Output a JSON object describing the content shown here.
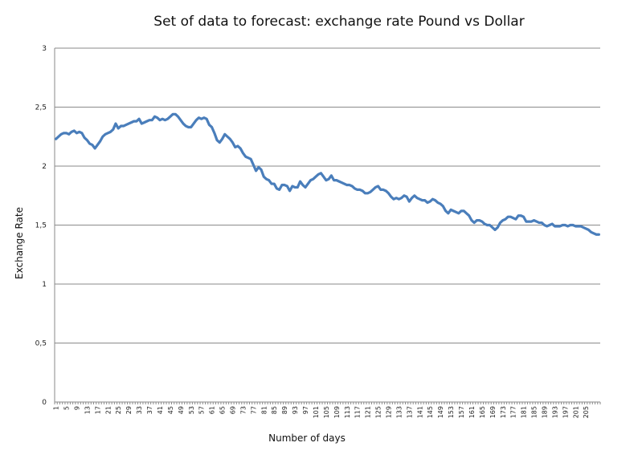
{
  "chart_data": {
    "type": "line",
    "title": "Set of data to forecast: exchange rate Pound vs Dollar",
    "xlabel": "Number of days",
    "ylabel": "Exchange Rate",
    "ylim": [
      0,
      3
    ],
    "y_ticks": [
      "0",
      "0,5",
      "1",
      "1,5",
      "2",
      "2,5",
      "3"
    ],
    "x_tick_labels": [
      "1",
      "5",
      "9",
      "13",
      "17",
      "21",
      "25",
      "29",
      "33",
      "37",
      "41",
      "45",
      "49",
      "53",
      "57",
      "61",
      "65",
      "69",
      "73",
      "77",
      "81",
      "85",
      "89",
      "93",
      "97",
      "101",
      "105",
      "109",
      "113",
      "117",
      "121",
      "125",
      "129",
      "133",
      "137",
      "141",
      "145",
      "149",
      "153",
      "157",
      "161",
      "165",
      "169",
      "173",
      "177",
      "181",
      "185",
      "189",
      "193",
      "197",
      "201",
      "205"
    ],
    "grid": true,
    "legend": "none",
    "line_color": "#4a7ebb",
    "series": [
      {
        "values": [
          2.23,
          2.25,
          2.27,
          2.28,
          2.28,
          2.27,
          2.29,
          2.3,
          2.28,
          2.29,
          2.28,
          2.24,
          2.22,
          2.19,
          2.18,
          2.15,
          2.18,
          2.21,
          2.25,
          2.27,
          2.28,
          2.29,
          2.31,
          2.36,
          2.32,
          2.34,
          2.34,
          2.35,
          2.36,
          2.37,
          2.38,
          2.38,
          2.4,
          2.36,
          2.37,
          2.38,
          2.39,
          2.39,
          2.42,
          2.41,
          2.39,
          2.4,
          2.39,
          2.4,
          2.42,
          2.44,
          2.44,
          2.42,
          2.39,
          2.36,
          2.34,
          2.33,
          2.33,
          2.36,
          2.39,
          2.41,
          2.4,
          2.41,
          2.4,
          2.35,
          2.33,
          2.28,
          2.22,
          2.2,
          2.23,
          2.27,
          2.25,
          2.23,
          2.2,
          2.16,
          2.17,
          2.15,
          2.11,
          2.08,
          2.07,
          2.06,
          2.01,
          1.96,
          1.99,
          1.97,
          1.91,
          1.89,
          1.88,
          1.85,
          1.85,
          1.81,
          1.8,
          1.84,
          1.84,
          1.83,
          1.79,
          1.83,
          1.82,
          1.82,
          1.87,
          1.84,
          1.82,
          1.85,
          1.88,
          1.89,
          1.91,
          1.93,
          1.94,
          1.91,
          1.88,
          1.89,
          1.92,
          1.88,
          1.88,
          1.87,
          1.86,
          1.85,
          1.84,
          1.84,
          1.83,
          1.81,
          1.8,
          1.8,
          1.79,
          1.77,
          1.77,
          1.78,
          1.8,
          1.82,
          1.83,
          1.8,
          1.8,
          1.79,
          1.77,
          1.74,
          1.72,
          1.73,
          1.72,
          1.73,
          1.75,
          1.74,
          1.7,
          1.73,
          1.75,
          1.73,
          1.72,
          1.71,
          1.71,
          1.69,
          1.7,
          1.72,
          1.71,
          1.69,
          1.68,
          1.66,
          1.62,
          1.6,
          1.63,
          1.62,
          1.61,
          1.6,
          1.62,
          1.62,
          1.6,
          1.58,
          1.54,
          1.52,
          1.54,
          1.54,
          1.53,
          1.51,
          1.5,
          1.5,
          1.48,
          1.46,
          1.48,
          1.52,
          1.54,
          1.55,
          1.57,
          1.57,
          1.56,
          1.55,
          1.58,
          1.58,
          1.57,
          1.53,
          1.53,
          1.53,
          1.54,
          1.53,
          1.52,
          1.52,
          1.5,
          1.49,
          1.5,
          1.51,
          1.49,
          1.49,
          1.49,
          1.5,
          1.5,
          1.49,
          1.5,
          1.5,
          1.49,
          1.49,
          1.49,
          1.48,
          1.47,
          1.46,
          1.44,
          1.43,
          1.42,
          1.42
        ]
      }
    ]
  }
}
